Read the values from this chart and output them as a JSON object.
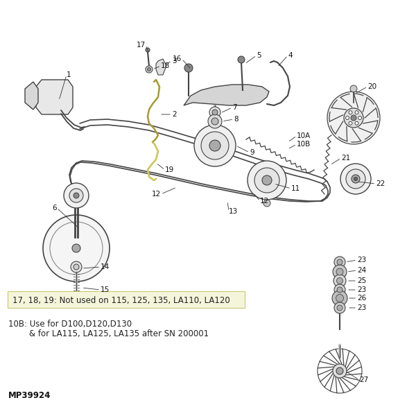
{
  "bg_color": "#ffffff",
  "note1_bg": "#f5f5dc",
  "note1_border": "#c8c870",
  "note1_text": "17, 18, 19: Not used on 115, 125, 135, LA110, LA120",
  "note2_line1": "10B: Use for D100,D120,D130",
  "note2_line2": "        & for LA115, LA125, LA135 after SN 200001",
  "part_number": "MP39924",
  "lc": "#444444",
  "lw": 1.0,
  "lbl_fs": 7.5,
  "note_fs": 8.5,
  "pn_fs": 8.5
}
